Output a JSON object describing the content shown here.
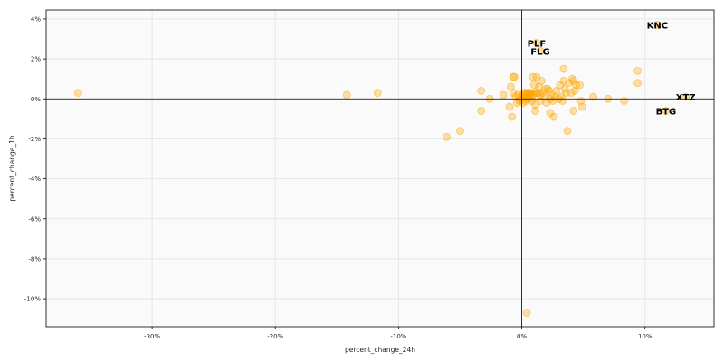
{
  "chart_data": {
    "type": "scatter",
    "xlabel": "percent_change_24h",
    "ylabel": "percent_change_1h",
    "xlim": [
      -0.386,
      0.156
    ],
    "ylim": [
      -0.114,
      0.0445
    ],
    "x_ticks": [
      {
        "value": -0.3,
        "label": "-30%"
      },
      {
        "value": -0.2,
        "label": "-20%"
      },
      {
        "value": -0.1,
        "label": "-10%"
      },
      {
        "value": 0.0,
        "label": "0%"
      },
      {
        "value": 0.1,
        "label": "10%"
      }
    ],
    "y_ticks": [
      {
        "value": 0.04,
        "label": "4%"
      },
      {
        "value": 0.02,
        "label": "2%"
      },
      {
        "value": 0.0,
        "label": "0%"
      },
      {
        "value": -0.02,
        "label": "-2%"
      },
      {
        "value": -0.04,
        "label": "-4%"
      },
      {
        "value": -0.06,
        "label": "-6%"
      },
      {
        "value": -0.08,
        "label": "-8%"
      },
      {
        "value": -0.1,
        "label": "-10%"
      }
    ],
    "grid": true,
    "reference_lines": {
      "x": 0,
      "y": 0
    },
    "colors": {
      "point_fill": "#ffa500",
      "point_opacity": 0.35,
      "plot_background": "#fafafa",
      "grid": "#e6e6e6"
    },
    "labeled_points": [
      {
        "label": "KNC",
        "x": 0.11,
        "y": 0.037
      },
      {
        "label": "PLF",
        "x": 0.012,
        "y": 0.028
      },
      {
        "label": "FLG",
        "x": 0.015,
        "y": 0.024
      },
      {
        "label": "XTZ",
        "x": 0.133,
        "y": 0.001
      },
      {
        "label": "BTG",
        "x": 0.117,
        "y": -0.006
      }
    ],
    "points": [
      [
        -0.36,
        0.003
      ],
      [
        -0.142,
        0.002
      ],
      [
        -0.117,
        0.003
      ],
      [
        -0.061,
        -0.019
      ],
      [
        -0.05,
        -0.016
      ],
      [
        -0.033,
        0.004
      ],
      [
        -0.033,
        -0.006
      ],
      [
        -0.026,
        0.0
      ],
      [
        -0.015,
        0.002
      ],
      [
        -0.01,
        -0.004
      ],
      [
        -0.009,
        0.006
      ],
      [
        -0.007,
        0.011
      ],
      [
        -0.006,
        0.011
      ],
      [
        -0.008,
        -0.009
      ],
      [
        -0.007,
        0.003
      ],
      [
        -0.005,
        0.001
      ],
      [
        -0.004,
        -0.002
      ],
      [
        -0.003,
        0.002
      ],
      [
        -0.002,
        -0.001
      ],
      [
        -0.002,
        0.0
      ],
      [
        0.0,
        0.001
      ],
      [
        0.001,
        0.002
      ],
      [
        0.001,
        -0.002
      ],
      [
        0.002,
        0.003
      ],
      [
        0.002,
        0.001
      ],
      [
        0.003,
        0.003
      ],
      [
        0.003,
        -0.001
      ],
      [
        0.004,
        0.0
      ],
      [
        0.004,
        0.002
      ],
      [
        0.005,
        0.003
      ],
      [
        0.005,
        0.001
      ],
      [
        0.006,
        0.003
      ],
      [
        0.006,
        0.0
      ],
      [
        0.007,
        0.002
      ],
      [
        0.007,
        0.003
      ],
      [
        0.008,
        -0.001
      ],
      [
        0.008,
        0.001
      ],
      [
        0.009,
        0.011
      ],
      [
        0.009,
        0.002
      ],
      [
        0.01,
        0.003
      ],
      [
        0.01,
        0.007
      ],
      [
        0.011,
        -0.003
      ],
      [
        0.011,
        -0.006
      ],
      [
        0.012,
        0.011
      ],
      [
        0.012,
        0.003
      ],
      [
        0.013,
        0.003
      ],
      [
        0.014,
        0.006
      ],
      [
        0.015,
        0.002
      ],
      [
        0.015,
        -0.001
      ],
      [
        0.016,
        0.009
      ],
      [
        0.017,
        0.003
      ],
      [
        0.018,
        0.001
      ],
      [
        0.019,
        0.005
      ],
      [
        0.02,
        -0.002
      ],
      [
        0.021,
        0.005
      ],
      [
        0.022,
        0.004
      ],
      [
        0.023,
        0.0
      ],
      [
        0.023,
        -0.007
      ],
      [
        0.024,
        0.002
      ],
      [
        0.025,
        -0.001
      ],
      [
        0.026,
        -0.009
      ],
      [
        0.027,
        0.001
      ],
      [
        0.028,
        0.004
      ],
      [
        0.03,
        0.0
      ],
      [
        0.031,
        0.007
      ],
      [
        0.032,
        0.001
      ],
      [
        0.033,
        -0.001
      ],
      [
        0.034,
        0.009
      ],
      [
        0.034,
        0.015
      ],
      [
        0.035,
        0.005
      ],
      [
        0.036,
        0.003
      ],
      [
        0.037,
        -0.016
      ],
      [
        0.038,
        0.008
      ],
      [
        0.04,
        0.003
      ],
      [
        0.041,
        0.01
      ],
      [
        0.042,
        0.009
      ],
      [
        0.042,
        -0.006
      ],
      [
        0.043,
        0.004
      ],
      [
        0.044,
        0.007
      ],
      [
        0.047,
        0.007
      ],
      [
        0.048,
        -0.001
      ],
      [
        0.049,
        -0.004
      ],
      [
        0.058,
        0.001
      ],
      [
        0.07,
        0.0
      ],
      [
        0.083,
        -0.001
      ],
      [
        0.094,
        0.014
      ],
      [
        0.094,
        0.008
      ],
      [
        0.004,
        -0.107
      ]
    ]
  }
}
